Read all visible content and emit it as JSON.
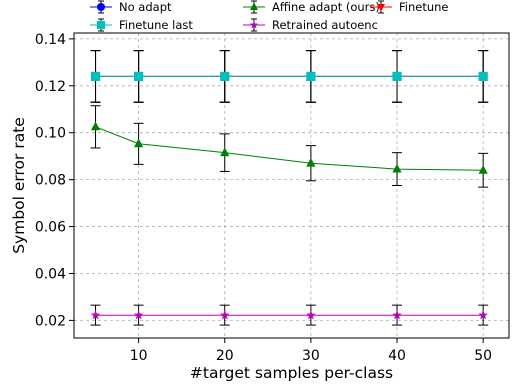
{
  "chart_data": {
    "type": "line",
    "xlabel": "#target samples per-class",
    "ylabel": "Symbol error rate",
    "x": [
      5,
      10,
      20,
      30,
      40,
      50
    ],
    "xlim": [
      2.5,
      53
    ],
    "ylim": [
      0.0125,
      0.1425
    ],
    "xticks": [
      10,
      20,
      30,
      40,
      50
    ],
    "yticks": [
      0.02,
      0.04,
      0.06,
      0.08,
      0.1,
      0.12,
      0.14
    ],
    "ytick_labels": [
      "0.02",
      "0.04",
      "0.06",
      "0.08",
      "0.10",
      "0.12",
      "0.14"
    ],
    "grid": true,
    "legend_position": "top",
    "series": [
      {
        "name": "No adapt",
        "color": "#0000ff",
        "marker": "circle",
        "values": [
          0.124,
          0.124,
          0.124,
          0.124,
          0.124,
          0.124
        ],
        "err_low": [
          0.113,
          0.113,
          0.113,
          0.113,
          0.113,
          0.113
        ],
        "err_high": [
          0.135,
          0.135,
          0.135,
          0.135,
          0.135,
          0.135
        ]
      },
      {
        "name": "Affine adapt (ours)",
        "color": "#008000",
        "marker": "triangle-up",
        "values": [
          0.1025,
          0.0953,
          0.0915,
          0.087,
          0.0845,
          0.084
        ],
        "err_low": [
          0.0935,
          0.0865,
          0.0835,
          0.0795,
          0.0775,
          0.0768
        ],
        "err_high": [
          0.1115,
          0.104,
          0.0995,
          0.0945,
          0.0915,
          0.0912
        ]
      },
      {
        "name": "Finetune",
        "color": "#ff0000",
        "marker": "triangle-down",
        "values": [
          0.124,
          0.124,
          0.124,
          0.124,
          0.124,
          0.124
        ],
        "err_low": [
          0.113,
          0.113,
          0.113,
          0.113,
          0.113,
          0.113
        ],
        "err_high": [
          0.135,
          0.135,
          0.135,
          0.135,
          0.135,
          0.135
        ]
      },
      {
        "name": "Finetune last",
        "color": "#00bfbf",
        "marker": "square",
        "values": [
          0.124,
          0.124,
          0.124,
          0.124,
          0.124,
          0.124
        ],
        "err_low": [
          0.113,
          0.113,
          0.113,
          0.113,
          0.113,
          0.113
        ],
        "err_high": [
          0.135,
          0.135,
          0.135,
          0.135,
          0.135,
          0.135
        ]
      },
      {
        "name": "Retrained autoenc",
        "color": "#bf00bf",
        "marker": "star",
        "values": [
          0.0222,
          0.0222,
          0.0222,
          0.0222,
          0.0222,
          0.0222
        ],
        "err_low": [
          0.018,
          0.018,
          0.018,
          0.018,
          0.018,
          0.018
        ],
        "err_high": [
          0.0265,
          0.0265,
          0.0265,
          0.0265,
          0.0265,
          0.0265
        ]
      }
    ]
  }
}
